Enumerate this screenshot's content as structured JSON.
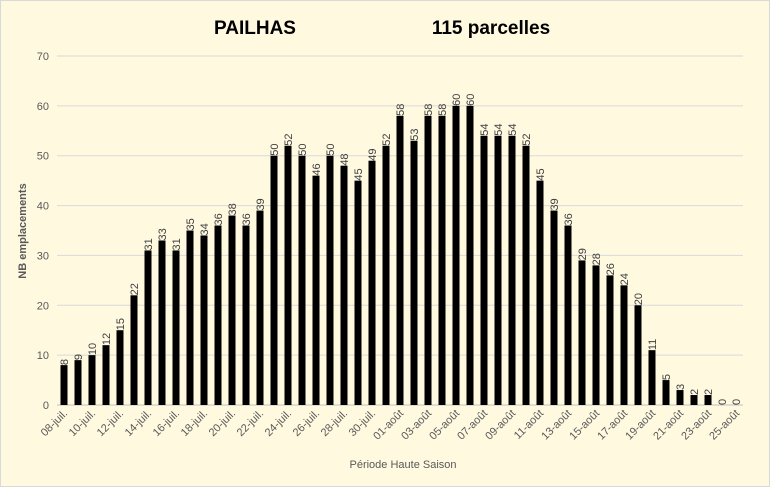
{
  "chart_data": {
    "type": "bar",
    "title": "PAILHAS",
    "subtitle": "115 parcelles",
    "xlabel": "Période Haute Saison",
    "ylabel": "NB emplacements",
    "ylim": [
      0,
      70
    ],
    "yticks": [
      0,
      10,
      20,
      30,
      40,
      50,
      60,
      70
    ],
    "grid": true,
    "bar_color": "#000000",
    "categories": [
      "08-juil.",
      "09-juil.",
      "10-juil.",
      "11-juil.",
      "12-juil.",
      "13-juil.",
      "14-juil.",
      "15-juil.",
      "16-juil.",
      "17-juil.",
      "18-juil.",
      "19-juil.",
      "20-juil.",
      "21-juil.",
      "22-juil.",
      "23-juil.",
      "24-juil.",
      "25-juil.",
      "26-juil.",
      "27-juil.",
      "28-juil.",
      "29-juil.",
      "30-juil.",
      "31-juil.",
      "01-août",
      "02-août",
      "03-août",
      "04-août",
      "05-août",
      "06-août",
      "07-août",
      "08-août",
      "09-août",
      "10-août",
      "11-août",
      "12-août",
      "13-août",
      "14-août",
      "15-août",
      "16-août",
      "17-août",
      "18-août",
      "19-août",
      "20-août",
      "21-août",
      "22-août",
      "23-août",
      "24-août",
      "25-août"
    ],
    "values": [
      8,
      9,
      10,
      12,
      15,
      22,
      31,
      33,
      31,
      35,
      34,
      36,
      38,
      36,
      39,
      50,
      52,
      50,
      46,
      50,
      48,
      45,
      49,
      52,
      58,
      53,
      58,
      58,
      60,
      60,
      54,
      54,
      54,
      52,
      45,
      39,
      36,
      29,
      28,
      26,
      24,
      20,
      11,
      5,
      3,
      2,
      2,
      0,
      0
    ],
    "tick_labels": [
      "08-juil.",
      "10-juil.",
      "12-juil.",
      "14-juil.",
      "16-juil.",
      "18-juil.",
      "20-juil.",
      "22-juil.",
      "24-juil.",
      "26-juil.",
      "28-juil.",
      "30-juil.",
      "01-août",
      "03-août",
      "05-août",
      "07-août",
      "09-août",
      "11-août",
      "13-août",
      "15-août",
      "17-août",
      "19-août",
      "21-août",
      "23-août",
      "25-août"
    ]
  }
}
